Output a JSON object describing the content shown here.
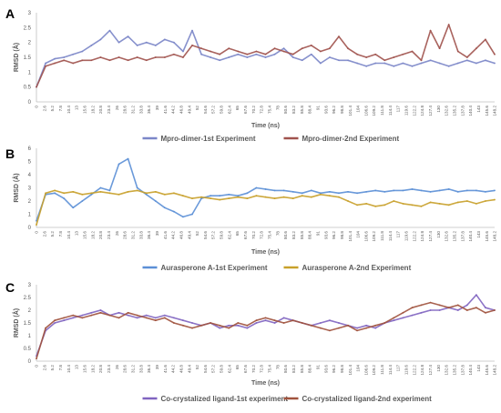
{
  "chart_data": [
    {
      "type": "line",
      "panel_label": "A",
      "ylabel": "RMSD (Å)",
      "xlabel": "Time (ns)",
      "ylim": [
        0,
        3
      ],
      "yticks": [
        0,
        0.5,
        1,
        1.5,
        2,
        2.5,
        3
      ],
      "xlim": [
        0,
        150
      ],
      "xtick_labels": [
        "0",
        "2.6",
        "5.2",
        "7.8",
        "10.4",
        "13",
        "15.6",
        "18.2",
        "20.8",
        "23.4",
        "26",
        "28.6",
        "31.2",
        "33.8",
        "36.4",
        "39",
        "41.6",
        "44.2",
        "46.8",
        "49.4",
        "52",
        "54.6",
        "57.2",
        "59.8",
        "62.4",
        "65",
        "67.6",
        "70.2",
        "72.8",
        "75.4",
        "78",
        "80.6",
        "83.2",
        "85.8",
        "88.4",
        "91",
        "93.6",
        "96.2",
        "98.8",
        "101.4",
        "104",
        "106.6",
        "109.2",
        "111.8",
        "114.4",
        "117",
        "119.6",
        "122.2",
        "124.8",
        "127.4",
        "130",
        "132.6",
        "135.2",
        "137.8",
        "140.4",
        "143",
        "145.6",
        "148.2"
      ],
      "grid": false,
      "legend_position": "bottom",
      "series": [
        {
          "name": "Mpro-dimer-1st Experiment",
          "color": "#7b86c8",
          "x": [
            0,
            3,
            6,
            9,
            12,
            15,
            18,
            21,
            24,
            27,
            30,
            33,
            36,
            39,
            42,
            45,
            48,
            51,
            54,
            57,
            60,
            63,
            66,
            69,
            72,
            75,
            78,
            81,
            84,
            87,
            90,
            93,
            96,
            99,
            102,
            105,
            108,
            111,
            114,
            117,
            120,
            123,
            126,
            129,
            132,
            135,
            138,
            141,
            144,
            147,
            150
          ],
          "y": [
            0.5,
            1.3,
            1.45,
            1.5,
            1.6,
            1.7,
            1.9,
            2.1,
            2.4,
            2.0,
            2.2,
            1.9,
            2.0,
            1.9,
            2.1,
            2.0,
            1.7,
            2.4,
            1.6,
            1.5,
            1.4,
            1.5,
            1.6,
            1.5,
            1.6,
            1.5,
            1.6,
            1.8,
            1.5,
            1.4,
            1.6,
            1.3,
            1.5,
            1.4,
            1.4,
            1.3,
            1.2,
            1.3,
            1.3,
            1.2,
            1.3,
            1.2,
            1.3,
            1.4,
            1.3,
            1.2,
            1.3,
            1.4,
            1.3,
            1.4,
            1.3
          ]
        },
        {
          "name": "Mpro-dimer-2nd Experiment",
          "color": "#a0524d",
          "x": [
            0,
            3,
            6,
            9,
            12,
            15,
            18,
            21,
            24,
            27,
            30,
            33,
            36,
            39,
            42,
            45,
            48,
            51,
            54,
            57,
            60,
            63,
            66,
            69,
            72,
            75,
            78,
            81,
            84,
            87,
            90,
            93,
            96,
            99,
            102,
            105,
            108,
            111,
            114,
            117,
            120,
            123,
            126,
            129,
            132,
            135,
            138,
            141,
            144,
            147,
            150
          ],
          "y": [
            0.5,
            1.2,
            1.3,
            1.4,
            1.3,
            1.4,
            1.4,
            1.5,
            1.4,
            1.5,
            1.4,
            1.5,
            1.4,
            1.5,
            1.5,
            1.6,
            1.5,
            1.9,
            1.8,
            1.7,
            1.6,
            1.8,
            1.7,
            1.6,
            1.7,
            1.6,
            1.8,
            1.7,
            1.6,
            1.8,
            1.9,
            1.7,
            1.8,
            2.2,
            1.8,
            1.6,
            1.5,
            1.6,
            1.4,
            1.5,
            1.6,
            1.7,
            1.4,
            2.4,
            1.8,
            2.6,
            1.7,
            1.5,
            1.8,
            2.1,
            1.6
          ]
        }
      ]
    },
    {
      "type": "line",
      "panel_label": "B",
      "ylabel": "RMSD (Å)",
      "xlabel": "Time (ns)",
      "ylim": [
        0,
        6
      ],
      "yticks": [
        0,
        1,
        2,
        3,
        4,
        5,
        6
      ],
      "xlim": [
        0,
        150
      ],
      "xtick_labels": [
        "0",
        "2.6",
        "5.2",
        "7.8",
        "10.4",
        "13",
        "15.6",
        "18.2",
        "20.8",
        "23.4",
        "26",
        "28.6",
        "31.2",
        "33.8",
        "36.4",
        "39",
        "41.6",
        "44.2",
        "46.8",
        "49.4",
        "52",
        "54.6",
        "57.2",
        "59.8",
        "62.4",
        "65",
        "67.6",
        "70.2",
        "72.8",
        "75.4",
        "78",
        "80.6",
        "83.2",
        "85.8",
        "88.4",
        "91",
        "93.6",
        "96.2",
        "98.8",
        "101.4",
        "104",
        "106.6",
        "109.2",
        "111.8",
        "114.4",
        "117",
        "119.6",
        "122.2",
        "124.8",
        "127.4",
        "130",
        "132.6",
        "135.2",
        "137.8",
        "140.4",
        "143",
        "145.6",
        "148.2"
      ],
      "grid": false,
      "legend_position": "bottom",
      "series": [
        {
          "name": "Aurasperone A-1st Experiment",
          "color": "#5b8fd6",
          "x": [
            0,
            3,
            6,
            9,
            12,
            15,
            18,
            21,
            24,
            27,
            30,
            33,
            36,
            39,
            42,
            45,
            48,
            51,
            54,
            57,
            60,
            63,
            66,
            69,
            72,
            75,
            78,
            81,
            84,
            87,
            90,
            93,
            96,
            99,
            102,
            105,
            108,
            111,
            114,
            117,
            120,
            123,
            126,
            129,
            132,
            135,
            138,
            141,
            144,
            147,
            150
          ],
          "y": [
            0.5,
            2.5,
            2.6,
            2.2,
            1.5,
            2.0,
            2.5,
            3.0,
            2.8,
            4.8,
            5.2,
            3.0,
            2.5,
            2.0,
            1.5,
            1.2,
            0.8,
            1.0,
            2.2,
            2.4,
            2.4,
            2.5,
            2.4,
            2.6,
            3.0,
            2.9,
            2.8,
            2.8,
            2.7,
            2.6,
            2.8,
            2.6,
            2.7,
            2.6,
            2.7,
            2.6,
            2.7,
            2.8,
            2.7,
            2.8,
            2.8,
            2.9,
            2.8,
            2.7,
            2.8,
            2.9,
            2.7,
            2.8,
            2.8,
            2.7,
            2.8
          ]
        },
        {
          "name": "Aurasperone A-2nd Experiment",
          "color": "#c8a02a",
          "x": [
            0,
            3,
            6,
            9,
            12,
            15,
            18,
            21,
            24,
            27,
            30,
            33,
            36,
            39,
            42,
            45,
            48,
            51,
            54,
            57,
            60,
            63,
            66,
            69,
            72,
            75,
            78,
            81,
            84,
            87,
            90,
            93,
            96,
            99,
            102,
            105,
            108,
            111,
            114,
            117,
            120,
            123,
            126,
            129,
            132,
            135,
            138,
            141,
            144,
            147,
            150
          ],
          "y": [
            0.2,
            2.6,
            2.8,
            2.6,
            2.7,
            2.5,
            2.6,
            2.7,
            2.6,
            2.5,
            2.7,
            2.8,
            2.6,
            2.7,
            2.5,
            2.6,
            2.4,
            2.2,
            2.3,
            2.2,
            2.1,
            2.2,
            2.3,
            2.2,
            2.4,
            2.3,
            2.2,
            2.3,
            2.2,
            2.4,
            2.3,
            2.5,
            2.4,
            2.3,
            2.0,
            1.7,
            1.8,
            1.6,
            1.7,
            2.0,
            1.8,
            1.7,
            1.6,
            1.9,
            1.8,
            1.7,
            1.9,
            2.0,
            1.8,
            2.0,
            2.1
          ]
        }
      ]
    },
    {
      "type": "line",
      "panel_label": "C",
      "ylabel": "RMSD (Å)",
      "xlabel": "Time (ns)",
      "ylim": [
        0,
        3
      ],
      "yticks": [
        0,
        0.5,
        1,
        1.5,
        2,
        2.5,
        3
      ],
      "xlim": [
        0,
        150
      ],
      "xtick_labels": [
        "0",
        "2.6",
        "5.2",
        "7.8",
        "10.4",
        "13",
        "15.6",
        "18.2",
        "20.8",
        "23.4",
        "26",
        "28.6",
        "31.2",
        "33.8",
        "36.4",
        "39",
        "41.6",
        "44.2",
        "46.8",
        "49.4",
        "52",
        "54.6",
        "57.2",
        "59.8",
        "62.4",
        "65",
        "67.6",
        "70.2",
        "72.8",
        "75.4",
        "78",
        "80.6",
        "83.2",
        "85.8",
        "88.4",
        "91",
        "93.6",
        "96.2",
        "98.8",
        "101.4",
        "104",
        "106.6",
        "109.2",
        "111.8",
        "114.4",
        "117",
        "119.6",
        "122.2",
        "124.8",
        "127.4",
        "130",
        "132.6",
        "135.2",
        "137.8",
        "140.4",
        "143",
        "145.6",
        "148.2"
      ],
      "grid": false,
      "legend_position": "bottom",
      "series": [
        {
          "name": "Co-crystalized ligand-1st experiment",
          "color": "#8064c0",
          "x": [
            0,
            3,
            6,
            9,
            12,
            15,
            18,
            21,
            24,
            27,
            30,
            33,
            36,
            39,
            42,
            45,
            48,
            51,
            54,
            57,
            60,
            63,
            66,
            69,
            72,
            75,
            78,
            81,
            84,
            87,
            90,
            93,
            96,
            99,
            102,
            105,
            108,
            111,
            114,
            117,
            120,
            123,
            126,
            129,
            132,
            135,
            138,
            141,
            144,
            147,
            150
          ],
          "y": [
            0.2,
            1.2,
            1.5,
            1.6,
            1.7,
            1.8,
            1.9,
            2.0,
            1.8,
            1.9,
            1.8,
            1.7,
            1.8,
            1.7,
            1.8,
            1.7,
            1.6,
            1.5,
            1.4,
            1.5,
            1.3,
            1.4,
            1.4,
            1.3,
            1.5,
            1.6,
            1.5,
            1.7,
            1.6,
            1.5,
            1.4,
            1.5,
            1.6,
            1.5,
            1.4,
            1.3,
            1.4,
            1.3,
            1.5,
            1.6,
            1.7,
            1.8,
            1.9,
            2.0,
            2.0,
            2.1,
            2.0,
            2.2,
            2.6,
            2.1,
            2.0
          ]
        },
        {
          "name": "Co-crystalized ligand-2nd experiment",
          "color": "#a0523d",
          "x": [
            0,
            3,
            6,
            9,
            12,
            15,
            18,
            21,
            24,
            27,
            30,
            33,
            36,
            39,
            42,
            45,
            48,
            51,
            54,
            57,
            60,
            63,
            66,
            69,
            72,
            75,
            78,
            81,
            84,
            87,
            90,
            93,
            96,
            99,
            102,
            105,
            108,
            111,
            114,
            117,
            120,
            123,
            126,
            129,
            132,
            135,
            138,
            141,
            144,
            147,
            150
          ],
          "y": [
            0.1,
            1.3,
            1.6,
            1.7,
            1.8,
            1.7,
            1.8,
            1.9,
            1.8,
            1.7,
            1.9,
            1.8,
            1.7,
            1.6,
            1.7,
            1.5,
            1.4,
            1.3,
            1.4,
            1.5,
            1.4,
            1.3,
            1.5,
            1.4,
            1.6,
            1.7,
            1.6,
            1.5,
            1.6,
            1.5,
            1.4,
            1.3,
            1.2,
            1.3,
            1.4,
            1.2,
            1.3,
            1.4,
            1.5,
            1.7,
            1.9,
            2.1,
            2.2,
            2.3,
            2.2,
            2.1,
            2.2,
            2.0,
            2.1,
            1.9,
            2.0
          ]
        }
      ]
    }
  ]
}
